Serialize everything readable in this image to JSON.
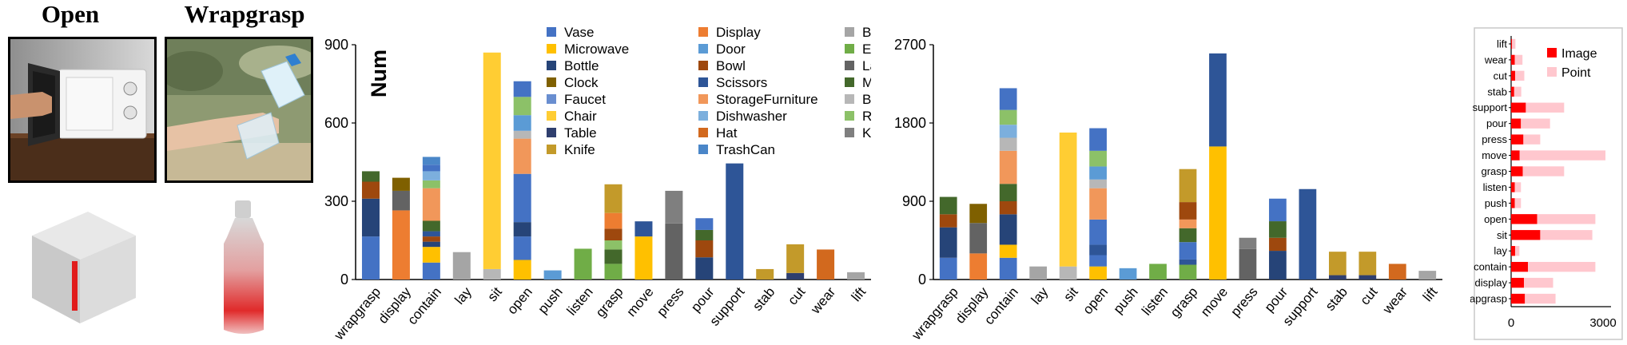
{
  "examples": [
    {
      "label": "Open"
    },
    {
      "label": "Wrapgrasp"
    }
  ],
  "legend_categories": [
    "Vase",
    "Display",
    "Bed",
    "Microwave",
    "Door",
    "Earphone",
    "Bottle",
    "Bowl",
    "Laptop",
    "Clock",
    "Scissors",
    "Mug",
    "Faucet",
    "StorageFurniture",
    "Bag",
    "Chair",
    "Dishwasher",
    "Refrigerator",
    "Table",
    "Hat",
    "Keyboard",
    "Knife",
    "TrashCan"
  ],
  "palette": {
    "Vase": "#4472c4",
    "Microwave": "#ffc000",
    "Bottle": "#264478",
    "Clock": "#7f6000",
    "Faucet": "#698ed0",
    "Chair": "#ffcd33",
    "Table": "#2f3f6e",
    "Knife": "#c39a2a",
    "Display": "#ed7d31",
    "Door": "#5b9bd5",
    "Bowl": "#9e480e",
    "Scissors": "#2e5597",
    "StorageFurniture": "#f1975a",
    "Dishwasher": "#7cafdd",
    "Hat": "#d2691e",
    "TrashCan": "#4a86c8",
    "Bed": "#a5a5a5",
    "Earphone": "#70ad47",
    "Laptop": "#636363",
    "Mug": "#43682b",
    "Bag": "#b7b7b7",
    "Refrigerator": "#8cc168",
    "Keyboard": "#7f7f7f"
  },
  "chart_data": [
    {
      "type": "bar",
      "stacked": true,
      "ylabel": "Num",
      "ylim": [
        0,
        900
      ],
      "yticks": [
        "0",
        "300",
        "600",
        "900"
      ],
      "categories": [
        "wrapgrasp",
        "display",
        "contain",
        "lay",
        "sit",
        "open",
        "push",
        "listen",
        "grasp",
        "move",
        "press",
        "pour",
        "support",
        "stab",
        "cut",
        "wear",
        "lift"
      ],
      "stacks": [
        [
          [
            "Vase",
            165
          ],
          [
            "Bottle",
            145
          ],
          [
            "Bowl",
            65
          ],
          [
            "Mug",
            40
          ]
        ],
        [
          [
            "Display",
            265
          ],
          [
            "Laptop",
            75
          ],
          [
            "Clock",
            50
          ]
        ],
        [
          [
            "Vase",
            65
          ],
          [
            "Microwave",
            60
          ],
          [
            "Bottle",
            20
          ],
          [
            "Bowl",
            20
          ],
          [
            "Scissors",
            20
          ],
          [
            "Mug",
            40
          ],
          [
            "StorageFurniture",
            125
          ],
          [
            "Refrigerator",
            30
          ],
          [
            "Dishwasher",
            35
          ],
          [
            "Vase",
            25
          ],
          [
            "TrashCan",
            30
          ]
        ],
        [
          [
            "Bed",
            105
          ]
        ],
        [
          [
            "Bag",
            40
          ],
          [
            "Chair",
            830
          ]
        ],
        [
          [
            "Microwave",
            75
          ],
          [
            "Vase",
            90
          ],
          [
            "Bottle",
            55
          ],
          [
            "Vase",
            185
          ],
          [
            "StorageFurniture",
            135
          ],
          [
            "Bag",
            30
          ],
          [
            "Door",
            60
          ],
          [
            "Refrigerator",
            70
          ],
          [
            "Vase",
            60
          ]
        ],
        [
          [
            "Door",
            35
          ]
        ],
        [
          [
            "Earphone",
            118
          ]
        ],
        [
          [
            "Earphone",
            60
          ],
          [
            "Mug",
            55
          ],
          [
            "Refrigerator",
            35
          ],
          [
            "Bowl",
            45
          ],
          [
            "Display",
            60
          ],
          [
            "Knife",
            110
          ]
        ],
        [
          [
            "Microwave",
            165
          ],
          [
            "Scissors",
            58
          ]
        ],
        [
          [
            "Laptop",
            215
          ],
          [
            "Keyboard",
            125
          ]
        ],
        [
          [
            "Bottle",
            85
          ],
          [
            "Bowl",
            65
          ],
          [
            "Mug",
            40
          ],
          [
            "Vase",
            45
          ]
        ],
        [
          [
            "Scissors",
            445
          ]
        ],
        [
          [
            "Knife",
            40
          ]
        ],
        [
          [
            "Table",
            25
          ],
          [
            "Knife",
            110
          ]
        ],
        [
          [
            "Hat",
            115
          ]
        ],
        [
          [
            "Bed",
            28
          ]
        ]
      ]
    },
    {
      "type": "bar",
      "stacked": true,
      "ylim": [
        0,
        2700
      ],
      "yticks": [
        "0",
        "900",
        "1800",
        "2700"
      ],
      "categories": [
        "wrapgrasp",
        "display",
        "contain",
        "lay",
        "sit",
        "open",
        "push",
        "listen",
        "grasp",
        "move",
        "press",
        "pour",
        "support",
        "stab",
        "cut",
        "wear",
        "lift"
      ],
      "stacks": [
        [
          [
            "Vase",
            250
          ],
          [
            "Bottle",
            350
          ],
          [
            "Bowl",
            150
          ],
          [
            "Mug",
            200
          ]
        ],
        [
          [
            "Display",
            300
          ],
          [
            "Laptop",
            350
          ],
          [
            "Clock",
            220
          ]
        ],
        [
          [
            "Vase",
            250
          ],
          [
            "Microwave",
            150
          ],
          [
            "Bottle",
            350
          ],
          [
            "Bowl",
            150
          ],
          [
            "Mug",
            200
          ],
          [
            "StorageFurniture",
            380
          ],
          [
            "Bag",
            150
          ],
          [
            "Dishwasher",
            150
          ],
          [
            "Refrigerator",
            170
          ],
          [
            "Vase",
            250
          ]
        ],
        [
          [
            "Bed",
            150
          ]
        ],
        [
          [
            "Bag",
            150
          ],
          [
            "Chair",
            1540
          ]
        ],
        [
          [
            "Microwave",
            150
          ],
          [
            "Vase",
            130
          ],
          [
            "Scissors",
            120
          ],
          [
            "Vase",
            290
          ],
          [
            "StorageFurniture",
            360
          ],
          [
            "Bag",
            100
          ],
          [
            "Door",
            150
          ],
          [
            "Refrigerator",
            180
          ],
          [
            "Vase",
            260
          ]
        ],
        [
          [
            "Door",
            130
          ]
        ],
        [
          [
            "Earphone",
            180
          ]
        ],
        [
          [
            "Earphone",
            170
          ],
          [
            "Scissors",
            60
          ],
          [
            "Vase",
            200
          ],
          [
            "Mug",
            160
          ],
          [
            "StorageFurniture",
            100
          ],
          [
            "Bowl",
            200
          ],
          [
            "Knife",
            380
          ]
        ],
        [
          [
            "Microwave",
            1530
          ],
          [
            "Scissors",
            1070
          ]
        ],
        [
          [
            "Laptop",
            350
          ],
          [
            "Keyboard",
            130
          ]
        ],
        [
          [
            "Bottle",
            330
          ],
          [
            "Bowl",
            150
          ],
          [
            "Mug",
            190
          ],
          [
            "Vase",
            260
          ]
        ],
        [
          [
            "Scissors",
            1040
          ]
        ],
        [
          [
            "Table",
            50
          ],
          [
            "Knife",
            270
          ]
        ],
        [
          [
            "Table",
            50
          ],
          [
            "Knife",
            270
          ]
        ],
        [
          [
            "Hat",
            180
          ]
        ],
        [
          [
            "Bed",
            100
          ]
        ]
      ]
    },
    {
      "type": "bar",
      "orientation": "horizontal",
      "stacked": true,
      "categories": [
        "lift",
        "wear",
        "cut",
        "stab",
        "support",
        "pour",
        "press",
        "move",
        "grasp",
        "listen",
        "push",
        "open",
        "sit",
        "lay",
        "contain",
        "display",
        "wrapgrasp"
      ],
      "xlim": [
        0,
        3000
      ],
      "xticks": [
        "0",
        "3000"
      ],
      "legend": "top-right",
      "series": [
        {
          "name": "Image",
          "color": "#ff0000",
          "values": [
            30,
            120,
            130,
            100,
            480,
            320,
            400,
            280,
            380,
            120,
            120,
            850,
            950,
            130,
            550,
            420,
            450
          ]
        },
        {
          "name": "Point",
          "color": "#ffc7ce",
          "values": [
            110,
            250,
            300,
            230,
            1250,
            950,
            550,
            2800,
            1350,
            200,
            200,
            1900,
            1700,
            140,
            2200,
            950,
            1000
          ]
        }
      ]
    }
  ]
}
